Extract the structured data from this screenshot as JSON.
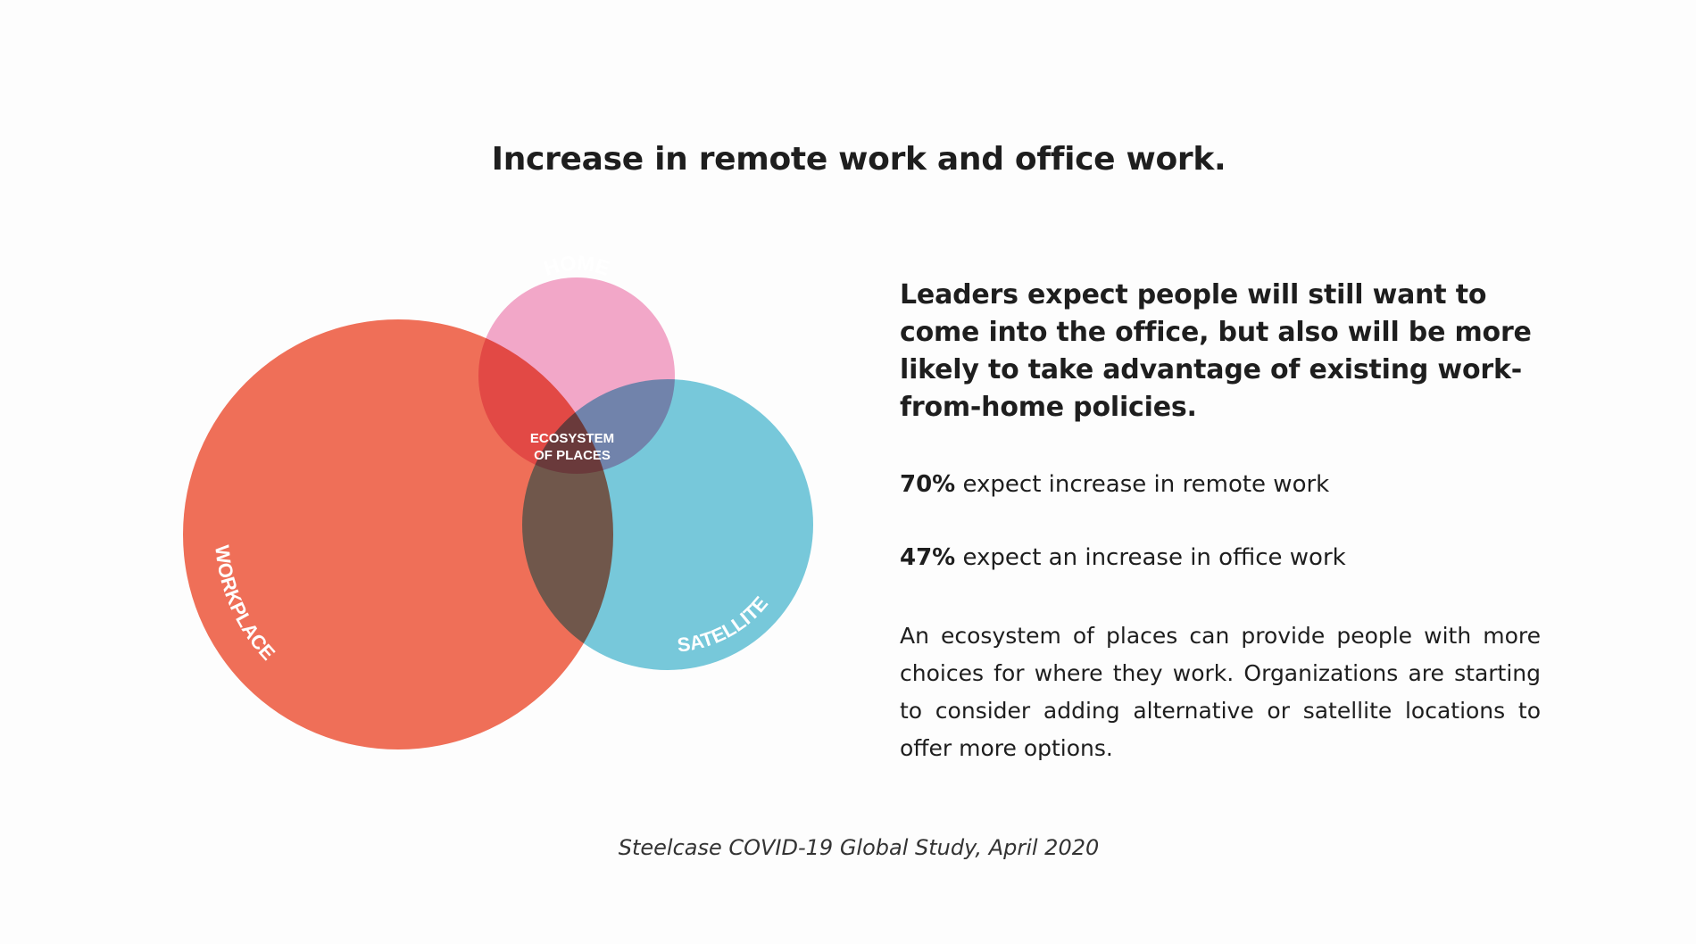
{
  "title": "Increase in remote work and office work.",
  "diagram": {
    "circles": [
      {
        "label": "WORKPLACE",
        "color": "#ef6f58"
      },
      {
        "label": "HOME",
        "color": "#f2a7c8"
      },
      {
        "label": "SATELLITE",
        "color": "#77c8da"
      }
    ],
    "center_label_line1": "ECOSYSTEM",
    "center_label_line2": "OF PLACES"
  },
  "lead": "Leaders expect people will still want to come into the office, but also will be more likely to take advantage of existing work-from-home policies.",
  "stats": [
    {
      "value": "70%",
      "text": " expect increase in remote work"
    },
    {
      "value": "47%",
      "text": " expect an increase in office work"
    }
  ],
  "paragraph": "An ecosystem of places can provide people with more choices for where they work. Organizations are starting to consider adding alternative or satellite locations to offer more options.",
  "source": "Steelcase COVID-19 Global Study, April 2020"
}
